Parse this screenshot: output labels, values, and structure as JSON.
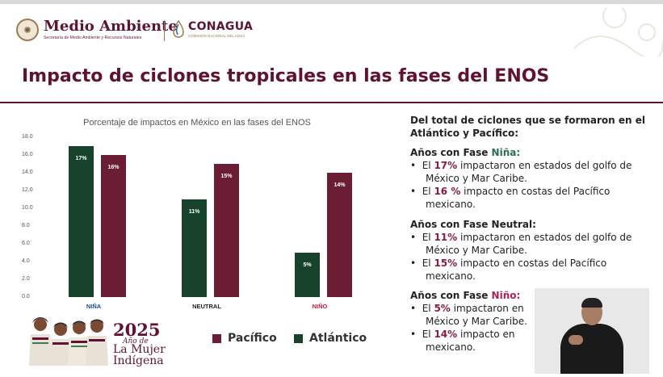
{
  "header": {
    "logo1_title": "Medio Ambiente",
    "logo1_subtitle": "Secretaría de Medio Ambiente y Recursos Naturales",
    "logo2_title": "CONAGUA",
    "logo2_subtitle": "COMISIÓN NACIONAL DEL AGUA"
  },
  "slide_title": "Impacto de ciclones tropicales en las fases del ENOS",
  "chart_data": {
    "type": "bar",
    "title": "Porcentaje de impactos en México en las fases del ENOS",
    "categories": [
      "NIÑA",
      "NEUTRAL",
      "NIÑO"
    ],
    "series": [
      {
        "name": "Atlántico",
        "values": [
          17,
          11,
          5
        ],
        "labels": [
          "17%",
          "11%",
          "5%"
        ],
        "color": "#17422b"
      },
      {
        "name": "Pacífico",
        "values": [
          16,
          15,
          14
        ],
        "labels": [
          "16%",
          "15%",
          "14%"
        ],
        "color": "#6b1d33"
      }
    ],
    "yticks": [
      "18.0",
      "16.0",
      "14.0",
      "12.0",
      "10.0",
      "8.0",
      "6.0",
      "4.0",
      "2.0",
      "0.0"
    ],
    "ylim": [
      0,
      18
    ],
    "category_colors": [
      "#1f4e9c",
      "#222222",
      "#c0203c"
    ],
    "legend": [
      {
        "label": "Pacífico",
        "color": "#6b1d33"
      },
      {
        "label": "Atlántico",
        "color": "#17422b"
      }
    ]
  },
  "right_panel": {
    "intro_line1": "Del total de ciclones que se formaron en el",
    "intro_line2": "Atlántico y Pacífico:",
    "nina": {
      "heading_prefix": "Años con Fase ",
      "heading_phase": "Niña:",
      "b1_pre": "El ",
      "b1_pct": "17%",
      "b1_post": " impactaron en estados del golfo de",
      "b1_line2": "México y Mar Caribe.",
      "b2_pre": "El ",
      "b2_pct": "16 %",
      "b2_post": " impacto en costas del Pacífico",
      "b2_line2": "mexicano."
    },
    "neutral": {
      "heading": "Años con Fase Neutral:",
      "b1_pre": "El ",
      "b1_pct": "11%",
      "b1_post": " impactaron en estados del golfo de",
      "b1_line2": "México y Mar Caribe.",
      "b2_pre": "El ",
      "b2_pct": "15%",
      "b2_post": " impacto en costas del Pacífico",
      "b2_line2": "mexicano."
    },
    "nino": {
      "heading_prefix": "Años con Fase ",
      "heading_phase": "Niño:",
      "b1_pre": "El ",
      "b1_pct": "5%",
      "b1_post": " impactaron en",
      "b1_line2": "México y Mar Caribe.",
      "b2_pre": "El ",
      "b2_pct": "14%",
      "b2_post": " impacto en",
      "b2_line2": "mexicano."
    },
    "bullet": "•"
  },
  "banner": {
    "year": "2025",
    "line1": "Año de",
    "line2": "La Mujer",
    "line3": "Indígena"
  }
}
